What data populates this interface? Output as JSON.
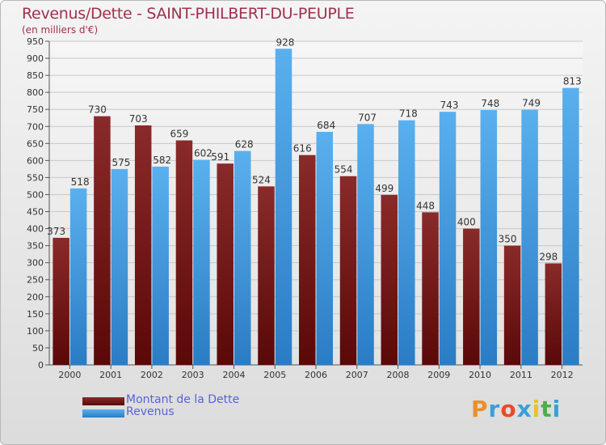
{
  "chart_data": {
    "type": "bar",
    "title": "Revenus/Dette - SAINT-PHILBERT-DU-PEUPLE",
    "subtitle": "(en milliers d'€)",
    "categories": [
      "2000",
      "2001",
      "2002",
      "2003",
      "2004",
      "2005",
      "2006",
      "2007",
      "2008",
      "2009",
      "2010",
      "2011",
      "2012"
    ],
    "series": [
      {
        "name": "Montant de la Dette",
        "color": "#7a1a1a",
        "values": [
          373,
          730,
          703,
          659,
          591,
          524,
          616,
          554,
          499,
          448,
          400,
          350,
          298
        ]
      },
      {
        "name": "Revenus",
        "color": "#3d9be0",
        "values": [
          518,
          575,
          582,
          602,
          628,
          928,
          684,
          707,
          718,
          743,
          748,
          749,
          813
        ]
      }
    ],
    "ylim": [
      0,
      950
    ],
    "ytick_step": 50,
    "grid": true,
    "legend_position": "bottom-left"
  },
  "logo": {
    "text": "Proxiti",
    "colors": [
      "#e8912a",
      "#3aa0d8",
      "#e84a2a",
      "#3aa0d8",
      "#e8c22a",
      "#4ab04a",
      "#3aa0d8"
    ]
  }
}
